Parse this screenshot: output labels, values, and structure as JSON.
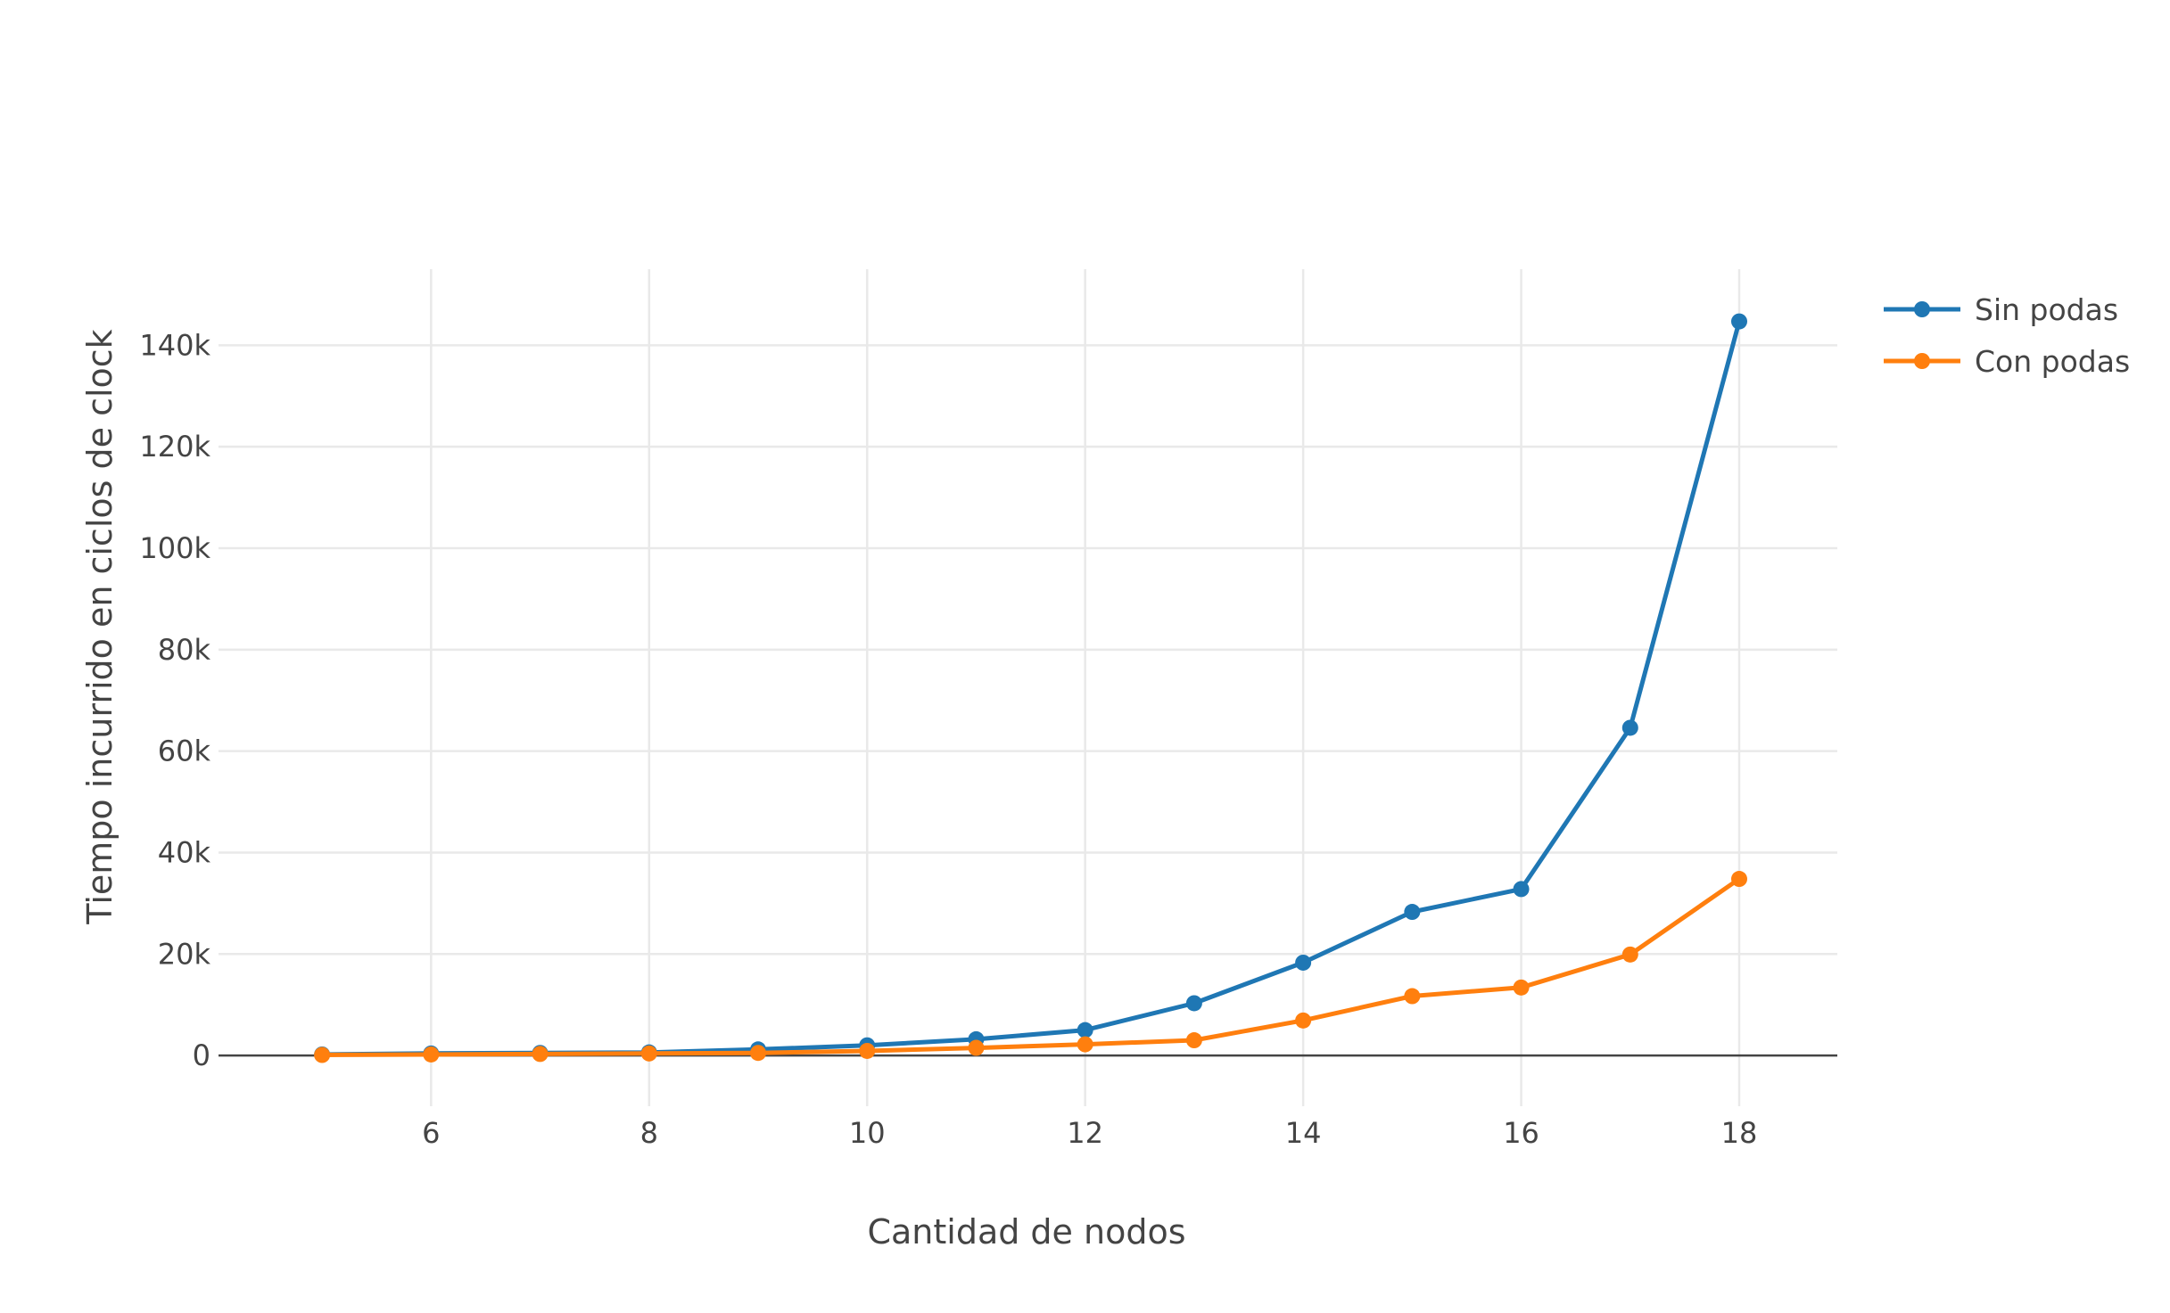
{
  "chart_data": {
    "type": "line",
    "title": "",
    "xlabel": "Cantidad de nodos",
    "ylabel": "Tiempo incurrido en ciclos de clock",
    "x": [
      5,
      6,
      7,
      8,
      9,
      10,
      11,
      12,
      13,
      14,
      15,
      16,
      17,
      18
    ],
    "xlim": [
      4.05,
      18.9
    ],
    "ylim": [
      -10000,
      155000
    ],
    "xticks": [
      6,
      8,
      10,
      12,
      14,
      16,
      18
    ],
    "xtick_labels": [
      "6",
      "8",
      "10",
      "12",
      "14",
      "16",
      "18"
    ],
    "yticks": [
      0,
      20000,
      40000,
      60000,
      80000,
      100000,
      120000,
      140000
    ],
    "ytick_labels": [
      "0",
      "20k",
      "40k",
      "60k",
      "80k",
      "100k",
      "120k",
      "140k"
    ],
    "grid": true,
    "legend_position": "top-right",
    "series": [
      {
        "name": "Sin podas",
        "color": "#1f77b4",
        "values": [
          200,
          400,
          500,
          600,
          1200,
          2000,
          3200,
          5000,
          10300,
          18300,
          28300,
          32800,
          64600,
          144700
        ]
      },
      {
        "name": "Con podas",
        "color": "#ff7f0e",
        "values": [
          100,
          200,
          300,
          400,
          500,
          900,
          1500,
          2200,
          3000,
          6900,
          11700,
          13400,
          19900,
          34800
        ]
      }
    ]
  }
}
